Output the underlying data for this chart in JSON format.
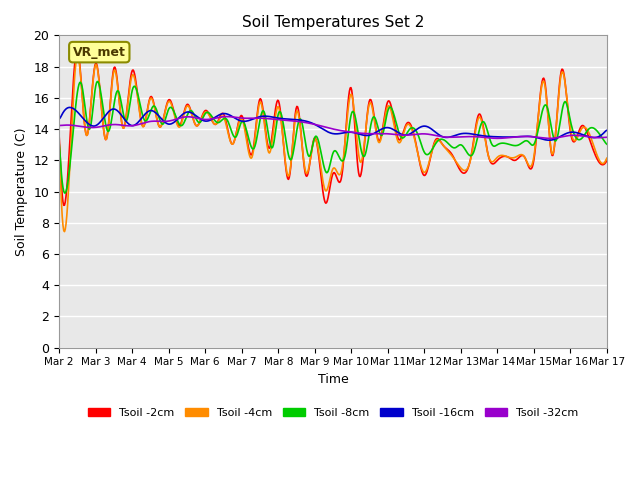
{
  "title": "Soil Temperatures Set 2",
  "xlabel": "Time",
  "ylabel": "Soil Temperature (C)",
  "ylim": [
    0,
    20
  ],
  "yticks": [
    0,
    2,
    4,
    6,
    8,
    10,
    12,
    14,
    16,
    18,
    20
  ],
  "bg_color": "#e8e8e8",
  "annotation_text": "VR_met",
  "annotation_box_color": "#ffff99",
  "annotation_border_color": "#8b8b00",
  "series_colors": {
    "Tsoil -2cm": "#ff0000",
    "Tsoil -4cm": "#ff8c00",
    "Tsoil -8cm": "#00cc00",
    "Tsoil -16cm": "#0000cc",
    "Tsoil -32cm": "#9900cc"
  },
  "series_lw": 1.2,
  "n_points": 720,
  "x_start": 0,
  "x_end": 15,
  "xtick_positions": [
    0,
    1,
    2,
    3,
    4,
    5,
    6,
    7,
    8,
    9,
    10,
    11,
    12,
    13,
    14,
    15
  ],
  "xtick_labels": [
    "Mar 2",
    "Mar 3",
    "Mar 4",
    "Mar 5",
    "Mar 6",
    "Mar 7",
    "Mar 8",
    "Mar 9",
    "Mar 10",
    "Mar 11",
    "Mar 12",
    "Mar 13",
    "Mar 14",
    "Mar 15",
    "Mar 16",
    "Mar 17"
  ],
  "control_2cm": {
    "t": [
      0.0,
      0.25,
      0.5,
      0.75,
      1.0,
      1.3,
      1.5,
      1.75,
      2.0,
      2.3,
      2.5,
      2.75,
      3.0,
      3.3,
      3.5,
      3.75,
      4.0,
      4.3,
      4.5,
      4.75,
      5.0,
      5.3,
      5.5,
      5.75,
      6.0,
      6.3,
      6.5,
      6.75,
      7.0,
      7.3,
      7.5,
      7.75,
      8.0,
      8.2,
      8.5,
      8.75,
      9.0,
      9.3,
      9.5,
      9.75,
      10.0,
      10.3,
      10.5,
      10.75,
      11.0,
      11.3,
      11.5,
      11.75,
      12.0,
      12.3,
      12.5,
      12.75,
      13.0,
      13.3,
      13.5,
      13.75,
      14.0,
      14.3,
      14.5,
      14.75,
      15.0
    ],
    "v": [
      14.2,
      11.5,
      19.2,
      13.5,
      18.3,
      13.3,
      18.0,
      14.0,
      17.8,
      14.1,
      16.1,
      14.1,
      15.9,
      14.2,
      15.6,
      14.2,
      15.2,
      14.3,
      15.0,
      13.0,
      14.9,
      12.5,
      16.0,
      12.7,
      15.9,
      10.8,
      15.5,
      11.0,
      13.5,
      9.2,
      11.2,
      11.1,
      16.7,
      11.1,
      15.9,
      13.2,
      15.8,
      13.3,
      14.3,
      13.3,
      11.0,
      13.3,
      13.0,
      12.4,
      11.3,
      12.5,
      15.0,
      12.3,
      12.0,
      12.2,
      12.0,
      12.2,
      12.0,
      17.1,
      12.2,
      17.8,
      13.8,
      14.2,
      13.5,
      12.0,
      12.0
    ]
  },
  "control_4cm": {
    "t": [
      0.0,
      0.3,
      0.5,
      0.75,
      1.0,
      1.3,
      1.5,
      1.75,
      2.0,
      2.3,
      2.5,
      2.75,
      3.0,
      3.3,
      3.5,
      3.75,
      4.0,
      4.3,
      4.5,
      4.75,
      5.0,
      5.3,
      5.5,
      5.75,
      6.0,
      6.3,
      6.5,
      6.75,
      7.0,
      7.3,
      7.5,
      7.75,
      8.0,
      8.25,
      8.5,
      8.75,
      9.0,
      9.3,
      9.5,
      9.75,
      10.0,
      10.3,
      10.5,
      10.75,
      11.0,
      11.3,
      11.5,
      11.75,
      12.0,
      12.3,
      12.5,
      12.75,
      13.0,
      13.3,
      13.5,
      13.75,
      14.0,
      14.3,
      14.5,
      14.75,
      15.0
    ],
    "v": [
      13.9,
      12.0,
      18.8,
      13.5,
      18.2,
      13.3,
      17.8,
      14.0,
      17.5,
      14.1,
      16.0,
      14.1,
      15.8,
      14.1,
      15.5,
      14.2,
      15.1,
      14.3,
      14.8,
      13.0,
      14.7,
      12.3,
      15.8,
      12.4,
      15.5,
      11.0,
      15.2,
      11.2,
      13.4,
      10.0,
      11.5,
      11.5,
      16.3,
      11.8,
      15.7,
      13.1,
      15.5,
      13.1,
      14.2,
      13.2,
      11.2,
      13.2,
      13.0,
      12.3,
      11.5,
      12.4,
      14.8,
      12.3,
      12.2,
      12.2,
      12.2,
      12.2,
      12.2,
      16.9,
      12.3,
      17.6,
      14.0,
      14.0,
      13.8,
      12.2,
      12.2
    ]
  },
  "control_8cm": {
    "t": [
      0.0,
      0.35,
      0.6,
      0.85,
      1.0,
      1.35,
      1.6,
      1.85,
      2.0,
      2.35,
      2.6,
      2.85,
      3.0,
      3.35,
      3.6,
      3.85,
      4.0,
      4.35,
      4.6,
      4.85,
      5.0,
      5.35,
      5.6,
      5.85,
      6.0,
      6.35,
      6.6,
      6.85,
      7.0,
      7.35,
      7.5,
      7.85,
      8.0,
      8.35,
      8.6,
      8.85,
      9.0,
      9.35,
      9.6,
      9.85,
      10.0,
      10.35,
      10.6,
      10.85,
      11.0,
      11.35,
      11.6,
      11.85,
      12.0,
      12.35,
      12.6,
      12.85,
      13.0,
      13.35,
      13.6,
      13.85,
      14.0,
      14.35,
      14.5,
      14.85,
      15.0
    ],
    "v": [
      13.5,
      13.0,
      17.0,
      14.0,
      16.8,
      13.8,
      16.5,
      14.5,
      16.5,
      14.5,
      15.5,
      14.3,
      15.3,
      14.2,
      15.2,
      14.4,
      15.0,
      14.4,
      14.6,
      13.5,
      14.5,
      12.8,
      15.2,
      12.8,
      15.0,
      12.0,
      14.7,
      12.2,
      13.5,
      11.2,
      12.5,
      12.5,
      15.0,
      12.2,
      14.8,
      13.6,
      15.2,
      13.5,
      14.0,
      13.5,
      12.5,
      13.2,
      13.2,
      12.8,
      13.0,
      12.5,
      14.5,
      13.0,
      13.0,
      13.0,
      13.0,
      13.2,
      13.0,
      15.5,
      13.2,
      15.8,
      14.5,
      13.5,
      14.0,
      13.5,
      13.0
    ]
  },
  "control_16cm": {
    "t": [
      0.0,
      0.5,
      1.0,
      1.5,
      2.0,
      2.5,
      3.0,
      3.5,
      4.0,
      4.5,
      5.0,
      5.5,
      6.0,
      6.5,
      7.0,
      7.5,
      8.0,
      8.5,
      9.0,
      9.5,
      10.0,
      10.5,
      11.0,
      11.5,
      12.0,
      12.5,
      13.0,
      13.5,
      14.0,
      14.5,
      15.0
    ],
    "v": [
      14.5,
      15.1,
      14.2,
      15.3,
      14.2,
      15.2,
      14.3,
      15.1,
      14.5,
      15.0,
      14.5,
      14.8,
      14.7,
      14.6,
      14.3,
      13.7,
      13.8,
      13.6,
      14.1,
      13.6,
      14.2,
      13.5,
      13.7,
      13.6,
      13.5,
      13.5,
      13.5,
      13.3,
      13.8,
      13.5,
      14.0
    ]
  },
  "control_32cm": {
    "t": [
      0.0,
      0.5,
      1.0,
      1.5,
      2.0,
      2.5,
      3.0,
      3.5,
      4.0,
      4.5,
      5.0,
      5.5,
      6.0,
      6.5,
      7.0,
      7.5,
      8.0,
      8.5,
      9.0,
      9.5,
      10.0,
      10.5,
      11.0,
      11.5,
      12.0,
      12.5,
      13.0,
      13.5,
      14.0,
      14.5,
      15.0
    ],
    "v": [
      14.2,
      14.2,
      14.1,
      14.3,
      14.2,
      14.5,
      14.5,
      14.8,
      14.6,
      14.8,
      14.7,
      14.7,
      14.6,
      14.5,
      14.3,
      14.0,
      13.8,
      13.7,
      13.7,
      13.6,
      13.7,
      13.5,
      13.5,
      13.5,
      13.4,
      13.5,
      13.5,
      13.4,
      13.6,
      13.5,
      13.5
    ]
  }
}
